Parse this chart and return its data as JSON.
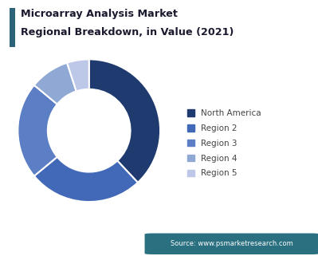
{
  "title_line1": "Microarray Analysis Market",
  "title_line2": "Regional Breakdown, in Value (2021)",
  "title_bar_color": "#2d6378",
  "segments": [
    {
      "label": "North America",
      "value": 38,
      "color": "#1e3a6e"
    },
    {
      "label": "Region 2",
      "value": 26,
      "color": "#4169b8"
    },
    {
      "label": "Region 3",
      "value": 22,
      "color": "#5b7ec5"
    },
    {
      "label": "Region 4",
      "value": 9,
      "color": "#8fa8d4"
    },
    {
      "label": "Region 5",
      "value": 5,
      "color": "#bdc8e8"
    }
  ],
  "source_text": "Source: www.psmarketresearch.com",
  "source_bg": "#2a7080",
  "source_text_color": "#ffffff",
  "bg_color": "#ffffff",
  "startangle": 90
}
